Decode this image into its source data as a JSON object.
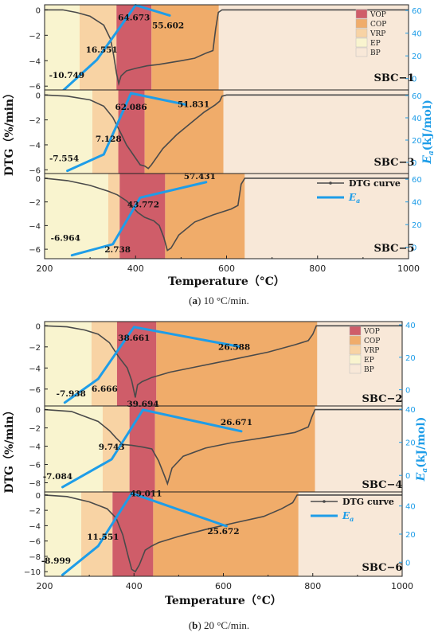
{
  "colors": {
    "VOP": "#cf5d69",
    "COP": "#f0ac6a",
    "VRP": "#f8d3a4",
    "EP": "#f9f4cf",
    "BP": "#f8e8d8",
    "dtg": "#4a4a4a",
    "ea": "#1e9de8",
    "axis_right": "#1e9de8"
  },
  "legend_regions": [
    "VOP",
    "COP",
    "VRP",
    "EP",
    "BP"
  ],
  "legend_lines": {
    "dtg": "DTG curve",
    "ea_main": "E",
    "ea_sub": "a"
  },
  "captions": [
    {
      "prefix": "(",
      "letter": "a",
      "rest": ") 10 °C/min."
    },
    {
      "prefix": "(",
      "letter": "b",
      "rest": ") 20 °C/min."
    }
  ],
  "chart_data": [
    {
      "type": "line",
      "title": "(a) 10 °C/min.",
      "xlabel": "Temperature（°C）",
      "ylabel_left": "DTG（%/min）",
      "ylabel_right_main": "E",
      "ylabel_right_sub": "a",
      "ylabel_right_unit": "(kJ/mol)",
      "xlim": [
        200,
        1000
      ],
      "xticks": [
        "200",
        "400",
        "600",
        "800",
        "1000"
      ],
      "panels": [
        {
          "name": "SBC−1",
          "ylim": [
            -6.3,
            0.4
          ],
          "yticks": [
            0,
            -2,
            -4,
            -6
          ],
          "ea_lim": [
            -10,
            65
          ],
          "ea_ticks": [
            0,
            20,
            40,
            60
          ],
          "regions": [
            [
              "EP",
              200,
              277
            ],
            [
              "VRP",
              277,
              358
            ],
            [
              "VOP",
              358,
              435
            ],
            [
              "COP",
              435,
              583
            ],
            [
              "BP",
              583,
              1000
            ]
          ],
          "dtg": [
            [
              200,
              0
            ],
            [
              240,
              0
            ],
            [
              270,
              -0.2
            ],
            [
              300,
              -0.5
            ],
            [
              330,
              -1.2
            ],
            [
              345,
              -2.3
            ],
            [
              352,
              -3.6
            ],
            [
              358,
              -5.0
            ],
            [
              363,
              -5.8
            ],
            [
              368,
              -5.2
            ],
            [
              380,
              -4.8
            ],
            [
              400,
              -4.6
            ],
            [
              425,
              -4.4
            ],
            [
              450,
              -4.3
            ],
            [
              500,
              -4.0
            ],
            [
              530,
              -3.8
            ],
            [
              555,
              -3.4
            ],
            [
              570,
              -3.2
            ],
            [
              576,
              -1.5
            ],
            [
              582,
              -0.2
            ],
            [
              590,
              0
            ],
            [
              700,
              0
            ],
            [
              800,
              0
            ],
            [
              900,
              0
            ],
            [
              1000,
              0
            ]
          ],
          "ea": [
            [
              240,
              -10.749
            ],
            [
              315,
              16.551
            ],
            [
              400,
              64.673
            ],
            [
              475,
              55.602
            ]
          ],
          "ea_labels": [
            "-10.749",
            "16.551",
            "64.673",
            "55.602"
          ]
        },
        {
          "name": "SBC−3",
          "ylim": [
            -6.3,
            0.4
          ],
          "yticks": [
            0,
            -2,
            -4,
            -6
          ],
          "ea_lim": [
            -10,
            65
          ],
          "ea_ticks": [
            0,
            20,
            40,
            60
          ],
          "regions": [
            [
              "EP",
              200,
              305
            ],
            [
              "VRP",
              305,
              362
            ],
            [
              "VOP",
              362,
              420
            ],
            [
              "COP",
              420,
              593
            ],
            [
              "BP",
              593,
              1000
            ]
          ],
          "dtg": [
            [
              200,
              0
            ],
            [
              250,
              -0.1
            ],
            [
              300,
              -0.4
            ],
            [
              330,
              -0.9
            ],
            [
              350,
              -1.8
            ],
            [
              368,
              -3.1
            ],
            [
              380,
              -4.0
            ],
            [
              395,
              -4.8
            ],
            [
              410,
              -5.6
            ],
            [
              420,
              -5.7
            ],
            [
              428,
              -5.9
            ],
            [
              435,
              -5.6
            ],
            [
              460,
              -4.3
            ],
            [
              490,
              -3.2
            ],
            [
              520,
              -2.3
            ],
            [
              550,
              -1.4
            ],
            [
              575,
              -0.8
            ],
            [
              585,
              -0.5
            ],
            [
              590,
              -0.1
            ],
            [
              600,
              0
            ],
            [
              700,
              0
            ],
            [
              800,
              0
            ],
            [
              900,
              0
            ],
            [
              1000,
              0
            ]
          ],
          "ea": [
            [
              250,
              -7.554
            ],
            [
              330,
              7.128
            ],
            [
              390,
              62.086
            ],
            [
              510,
              51.831
            ]
          ],
          "ea_labels": [
            "-7.554",
            "7.128",
            "62.086",
            "51.831"
          ]
        },
        {
          "name": "SBC−5",
          "ylim": [
            -6.8,
            0.4
          ],
          "yticks": [
            0,
            -2,
            -4,
            -6
          ],
          "ea_lim": [
            -10,
            65
          ],
          "ea_ticks": [
            0,
            20,
            40,
            60
          ],
          "regions": [
            [
              "EP",
              200,
              340
            ],
            [
              "VRP",
              340,
              365
            ],
            [
              "VOP",
              365,
              465
            ],
            [
              "COP",
              465,
              640
            ],
            [
              "BP",
              640,
              1000
            ]
          ],
          "dtg": [
            [
              200,
              0
            ],
            [
              250,
              -0.2
            ],
            [
              300,
              -0.6
            ],
            [
              340,
              -1.1
            ],
            [
              360,
              -1.4
            ],
            [
              380,
              -1.9
            ],
            [
              395,
              -2.5
            ],
            [
              405,
              -2.9
            ],
            [
              420,
              -3.3
            ],
            [
              440,
              -3.6
            ],
            [
              452,
              -4.0
            ],
            [
              462,
              -5.0
            ],
            [
              470,
              -6.1
            ],
            [
              478,
              -5.9
            ],
            [
              495,
              -4.8
            ],
            [
              530,
              -3.7
            ],
            [
              570,
              -3.1
            ],
            [
              610,
              -2.6
            ],
            [
              625,
              -2.3
            ],
            [
              632,
              -0.5
            ],
            [
              640,
              0
            ],
            [
              700,
              0
            ],
            [
              800,
              0
            ],
            [
              900,
              0
            ],
            [
              1000,
              0
            ]
          ],
          "ea": [
            [
              260,
              -6.964
            ],
            [
              350,
              2.738
            ],
            [
              410,
              43.772
            ],
            [
              555,
              57.431
            ]
          ],
          "ea_labels": [
            "-6.964",
            "2.738",
            "43.772",
            "57.431"
          ]
        }
      ],
      "legend": [
        "DTG curve",
        "Ea"
      ]
    },
    {
      "type": "line",
      "title": "(b) 20 °C/min.",
      "xlabel": "Temperature（°C）",
      "ylabel_left": "DTG（%/min）",
      "ylabel_right_main": "E",
      "ylabel_right_sub": "a",
      "ylabel_right_unit": "(kJ/mol)",
      "xlim": [
        200,
        1000
      ],
      "xticks": [
        "200",
        "400",
        "600",
        "800",
        "1000"
      ],
      "panels": [
        {
          "name": "SBC−2",
          "ylim": [
            -7.6,
            0.4
          ],
          "yticks": [
            0,
            -2,
            -4,
            -6
          ],
          "ea_lim": [
            -10,
            42
          ],
          "ea_ticks": [
            0,
            20,
            40
          ],
          "regions": [
            [
              "EP",
              200,
              305
            ],
            [
              "VRP",
              305,
              362
            ],
            [
              "VOP",
              362,
              450
            ],
            [
              "COP",
              450,
              810
            ],
            [
              "BP",
              810,
              1000
            ]
          ],
          "dtg": [
            [
              200,
              0
            ],
            [
              250,
              -0.1
            ],
            [
              290,
              -0.4
            ],
            [
              320,
              -0.8
            ],
            [
              345,
              -1.6
            ],
            [
              365,
              -2.9
            ],
            [
              385,
              -4.0
            ],
            [
              395,
              -5.2
            ],
            [
              403,
              -6.8
            ],
            [
              408,
              -5.6
            ],
            [
              418,
              -5.3
            ],
            [
              440,
              -4.9
            ],
            [
              480,
              -4.4
            ],
            [
              550,
              -3.8
            ],
            [
              620,
              -3.2
            ],
            [
              700,
              -2.5
            ],
            [
              760,
              -1.8
            ],
            [
              790,
              -1.4
            ],
            [
              800,
              -0.8
            ],
            [
              808,
              0
            ],
            [
              820,
              0
            ],
            [
              900,
              0
            ],
            [
              1000,
              0
            ]
          ],
          "ea": [
            [
              245,
              -7.938
            ],
            [
              320,
              6.666
            ],
            [
              400,
              38.661
            ],
            [
              635,
              26.588
            ]
          ],
          "ea_labels": [
            "-7.938",
            "6.666",
            "38.661",
            "26.588"
          ]
        },
        {
          "name": "SBC−4",
          "ylim": [
            -9.0,
            0.4
          ],
          "yticks": [
            0,
            -2,
            -4,
            -6,
            -8
          ],
          "ea_lim": [
            -10,
            42
          ],
          "ea_ticks": [
            0,
            20,
            40
          ],
          "regions": [
            [
              "EP",
              200,
              330
            ],
            [
              "VRP",
              330,
              390
            ],
            [
              "VOP",
              390,
              447
            ],
            [
              "COP",
              447,
              805
            ],
            [
              "BP",
              805,
              1000
            ]
          ],
          "dtg": [
            [
              200,
              0
            ],
            [
              260,
              -0.2
            ],
            [
              320,
              -1.3
            ],
            [
              345,
              -2.3
            ],
            [
              360,
              -3.1
            ],
            [
              375,
              -3.8
            ],
            [
              395,
              -3.9
            ],
            [
              420,
              -4.1
            ],
            [
              440,
              -4.3
            ],
            [
              455,
              -5.6
            ],
            [
              468,
              -7.2
            ],
            [
              475,
              -8.1
            ],
            [
              485,
              -6.4
            ],
            [
              510,
              -5.1
            ],
            [
              560,
              -4.2
            ],
            [
              620,
              -3.6
            ],
            [
              700,
              -3.0
            ],
            [
              760,
              -2.5
            ],
            [
              790,
              -1.9
            ],
            [
              798,
              -0.8
            ],
            [
              805,
              0
            ],
            [
              820,
              0
            ],
            [
              900,
              0
            ],
            [
              1000,
              0
            ]
          ],
          "ea": [
            [
              240,
              -7.084
            ],
            [
              350,
              9.743
            ],
            [
              420,
              39.694
            ],
            [
              640,
              26.671
            ]
          ],
          "ea_labels": [
            "-7.084",
            "9.743",
            "39.694",
            "26.671"
          ]
        },
        {
          "name": "SBC−6",
          "ylim": [
            -10.6,
            0.4
          ],
          "yticks": [
            0,
            -2,
            -4,
            -6,
            -8,
            -10
          ],
          "ea_lim": [
            -10,
            50
          ],
          "ea_ticks": [
            0,
            20,
            40
          ],
          "regions": [
            [
              "EP",
              200,
              282
            ],
            [
              "VRP",
              282,
              352
            ],
            [
              "VOP",
              352,
              443
            ],
            [
              "COP",
              443,
              768
            ],
            [
              "BP",
              768,
              1000
            ]
          ],
          "dtg": [
            [
              200,
              0
            ],
            [
              250,
              -0.2
            ],
            [
              300,
              -0.9
            ],
            [
              340,
              -1.8
            ],
            [
              360,
              -3.0
            ],
            [
              375,
              -5.2
            ],
            [
              387,
              -8.0
            ],
            [
              395,
              -9.7
            ],
            [
              403,
              -10.0
            ],
            [
              412,
              -9.1
            ],
            [
              425,
              -7.2
            ],
            [
              438,
              -6.7
            ],
            [
              455,
              -6.2
            ],
            [
              500,
              -5.4
            ],
            [
              560,
              -4.5
            ],
            [
              620,
              -3.7
            ],
            [
              690,
              -2.8
            ],
            [
              730,
              -1.8
            ],
            [
              755,
              -1.0
            ],
            [
              765,
              0
            ],
            [
              780,
              0
            ],
            [
              900,
              0
            ],
            [
              1000,
              0
            ]
          ],
          "ea": [
            [
              240,
              -8.999
            ],
            [
              320,
              11.551
            ],
            [
              395,
              49.011
            ],
            [
              607,
              25.672
            ]
          ],
          "ea_labels": [
            "-8.999",
            "11.551",
            "49.011",
            "25.672"
          ]
        }
      ],
      "legend": [
        "DTG curve",
        "Ea"
      ]
    }
  ]
}
